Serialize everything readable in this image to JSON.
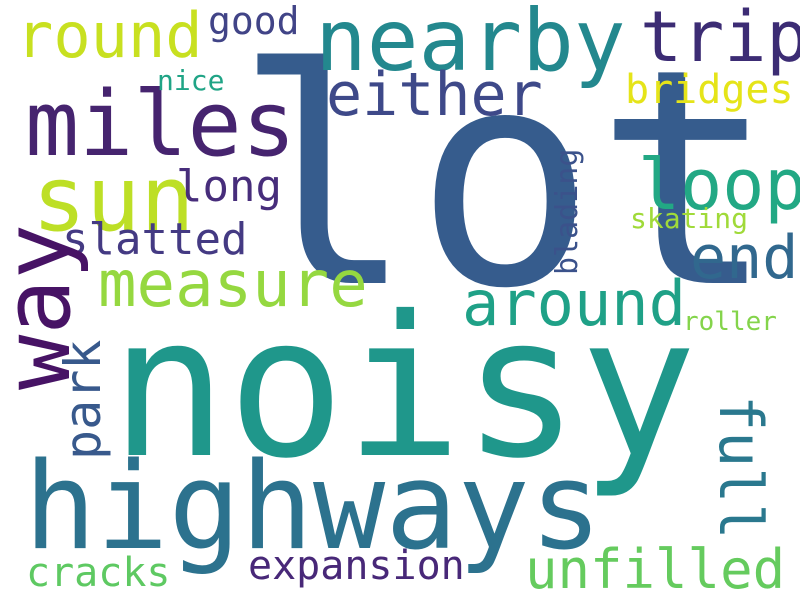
{
  "words": {
    "lot": {
      "text": "lot",
      "color": "#365c8d"
    },
    "noisy": {
      "text": "noisy",
      "color": "#1f978b"
    },
    "highways": {
      "text": "highways",
      "color": "#2c728e"
    },
    "nearby": {
      "text": "nearby",
      "color": "#23888e"
    },
    "miles": {
      "text": "miles",
      "color": "#46246f"
    },
    "round": {
      "text": "round",
      "color": "#c8e020"
    },
    "trip": {
      "text": "trip",
      "color": "#3c2c74"
    },
    "sun": {
      "text": "sun",
      "color": "#bddf26"
    },
    "way": {
      "text": "way",
      "color": "#471365"
    },
    "measure": {
      "text": "measure",
      "color": "#95d840"
    },
    "around": {
      "text": "around",
      "color": "#1fa187"
    },
    "either": {
      "text": "either",
      "color": "#3e4989"
    },
    "loop": {
      "text": "loop",
      "color": "#22a884"
    },
    "end": {
      "text": "end",
      "color": "#31688e"
    },
    "park": {
      "text": "park",
      "color": "#38598c"
    },
    "full": {
      "text": "full",
      "color": "#2a788e"
    },
    "unfilled": {
      "text": "unfilled",
      "color": "#65cb5e"
    },
    "expansion": {
      "text": "expansion",
      "color": "#482878"
    },
    "cracks": {
      "text": "cracks",
      "color": "#5ec962"
    },
    "slatted": {
      "text": "slatted",
      "color": "#443a83"
    },
    "long": {
      "text": "long",
      "color": "#472d7b"
    },
    "good": {
      "text": "good",
      "color": "#414487"
    },
    "bridges": {
      "text": "bridges",
      "color": "#e5e419"
    },
    "nice": {
      "text": "nice",
      "color": "#20a486"
    },
    "skating": {
      "text": "skating",
      "color": "#a0da39"
    },
    "blading": {
      "text": "blading",
      "color": "#3b528b"
    },
    "roller": {
      "text": "roller",
      "color": "#84d44b"
    }
  }
}
